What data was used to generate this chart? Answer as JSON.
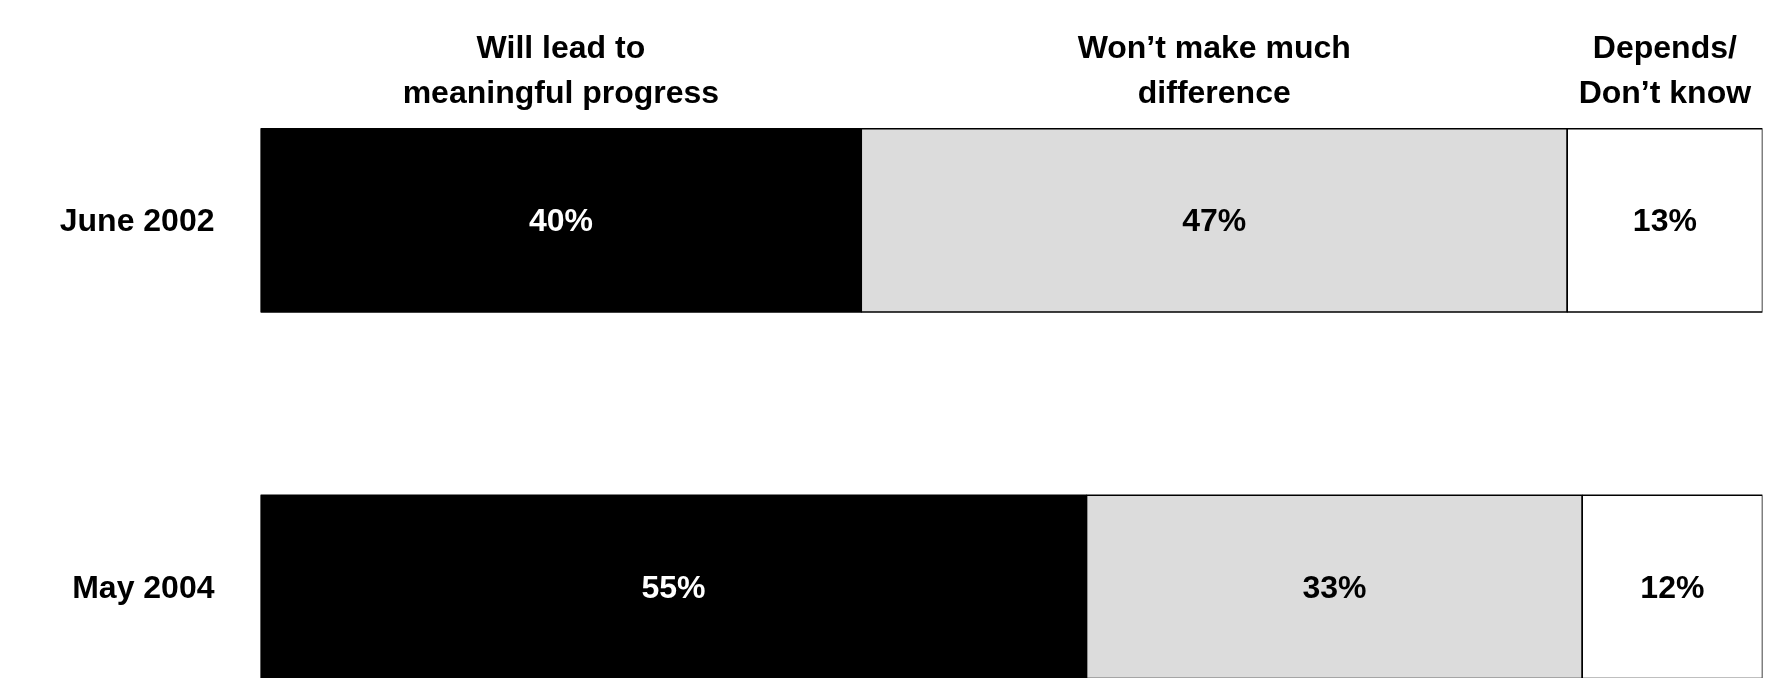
{
  "chart_data": {
    "type": "bar",
    "orientation": "horizontal",
    "stacked": true,
    "categories": [
      "June 2002",
      "May 2004"
    ],
    "series": [
      {
        "name": "Will lead to\nmeaningful progress",
        "color": "#000000",
        "values": [
          40,
          55
        ],
        "value_labels": [
          "40%",
          "55%"
        ]
      },
      {
        "name": "Won’t make much\ndifference",
        "color": "#dcdcdc",
        "values": [
          47,
          33
        ],
        "value_labels": [
          "47%",
          "33%"
        ]
      },
      {
        "name": "Depends/\nDon’t know",
        "color": "#ffffff",
        "values": [
          13,
          12
        ],
        "value_labels": [
          "13%",
          "12%"
        ]
      }
    ],
    "legend": "top",
    "grid": false
  }
}
